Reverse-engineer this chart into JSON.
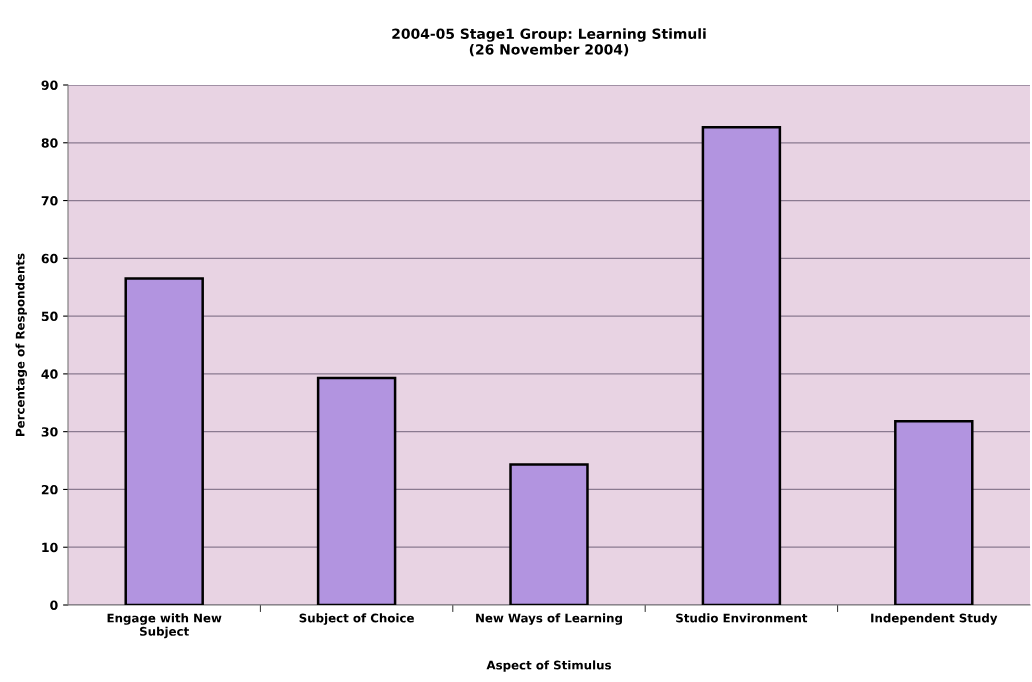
{
  "chart_data": {
    "type": "bar",
    "title": "2004-05 Stage1 Group: Learning Stimuli\n(26 November 2004)",
    "xlabel": "Aspect of Stimulus",
    "ylabel": "Percentage of Respondents",
    "categories": [
      "Engage with New\nSubject",
      "Subject of Choice",
      "New Ways of Learning",
      "Studio Environment",
      "Independent Study"
    ],
    "values": [
      56.5,
      39.3,
      24.3,
      82.7,
      31.8
    ],
    "color": "#b294e0",
    "ylim": [
      0,
      90
    ],
    "yticks": [
      0,
      10,
      20,
      30,
      40,
      50,
      60,
      70,
      80,
      90
    ],
    "grid": "y",
    "legend": false
  }
}
